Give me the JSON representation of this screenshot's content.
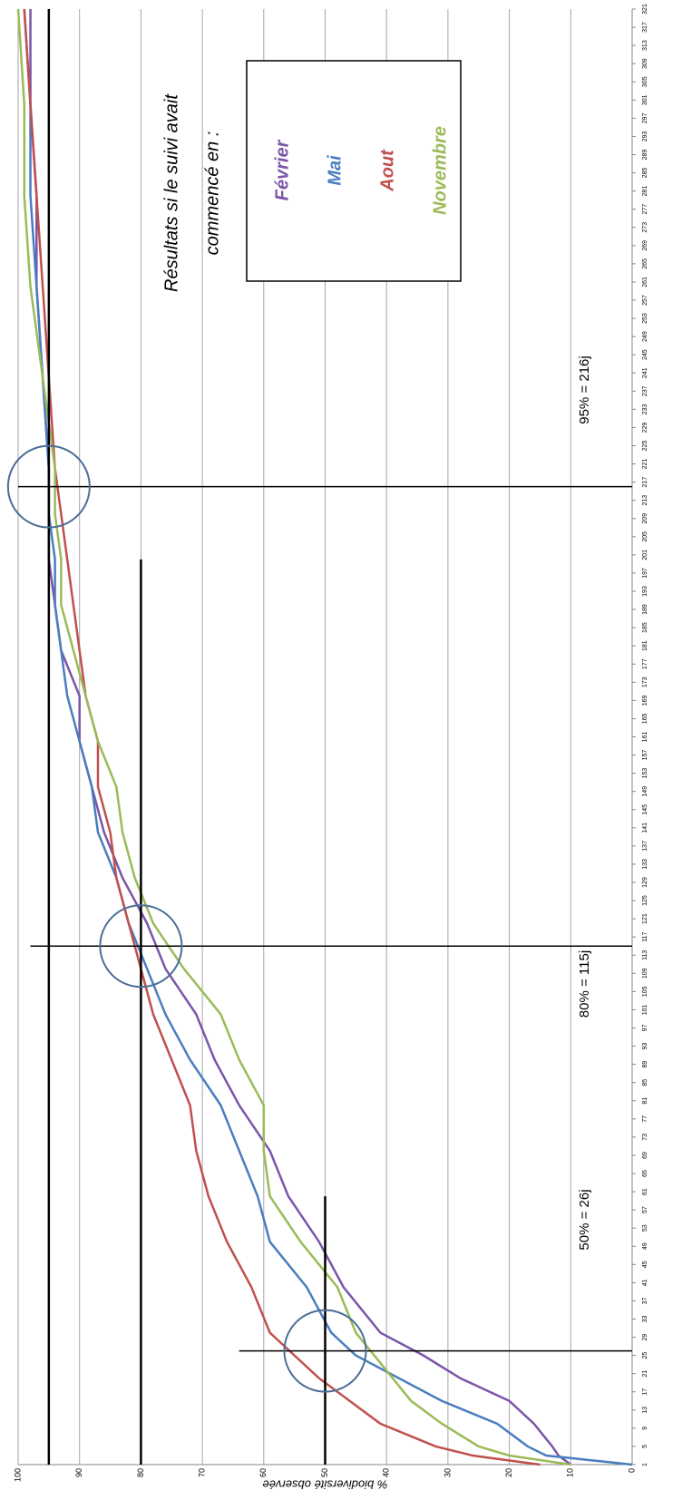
{
  "chart_data": {
    "type": "line",
    "y_label": "% biodiversité observée",
    "legend_title": [
      "Résultats si le suivi avait",
      "commencé en :"
    ],
    "xlim": [
      1,
      321
    ],
    "xticks": [
      1,
      5,
      9,
      13,
      17,
      21,
      25,
      29,
      33,
      37,
      41,
      45,
      49,
      53,
      57,
      61,
      65,
      69,
      73,
      77,
      81,
      85,
      89,
      93,
      97,
      101,
      105,
      109,
      113,
      117,
      121,
      125,
      129,
      133,
      137,
      141,
      145,
      149,
      153,
      157,
      161,
      165,
      169,
      173,
      177,
      181,
      185,
      189,
      193,
      197,
      201,
      205,
      209,
      213,
      217,
      221,
      225,
      229,
      233,
      237,
      241,
      245,
      249,
      253,
      257,
      261,
      265,
      269,
      273,
      277,
      281,
      285,
      289,
      293,
      297,
      301,
      305,
      309,
      313,
      317,
      321
    ],
    "ylim": [
      0,
      100
    ],
    "yticks": [
      0,
      10,
      20,
      30,
      40,
      50,
      60,
      70,
      80,
      90,
      100
    ],
    "grid": true,
    "x": [
      1,
      3,
      5,
      10,
      15,
      20,
      25,
      30,
      40,
      50,
      60,
      70,
      80,
      90,
      100,
      110,
      120,
      130,
      140,
      150,
      160,
      170,
      180,
      190,
      200,
      210,
      220,
      240,
      260,
      280,
      300,
      321
    ],
    "series": [
      {
        "name": "Février",
        "color": "#7a55a8",
        "values": [
          10,
          12,
          13,
          16,
          20,
          28,
          34,
          41,
          47,
          51,
          56,
          59,
          64,
          68,
          71,
          76,
          79,
          83,
          86,
          88,
          90,
          90,
          93,
          94,
          95,
          95,
          95,
          96,
          97,
          97,
          98,
          98
        ]
      },
      {
        "name": "Mai",
        "color": "#4a7ebf",
        "values": [
          0,
          14,
          17,
          22,
          31,
          38,
          45,
          49,
          53,
          59,
          61,
          64,
          67,
          72,
          76,
          79,
          82,
          84,
          87,
          88,
          90,
          92,
          93,
          94,
          94,
          95,
          95,
          96,
          97,
          98,
          98,
          99
        ]
      },
      {
        "name": "Aout",
        "color": "#c0504d",
        "values": [
          15,
          26,
          32,
          41,
          46,
          51,
          55,
          59,
          62,
          66,
          69,
          71,
          72,
          75,
          78,
          80,
          82,
          84,
          85,
          87,
          87,
          89,
          90,
          91,
          92,
          93,
          94,
          95,
          96,
          97,
          98,
          99
        ]
      },
      {
        "name": "Novembre",
        "color": "#9bbb59",
        "values": [
          10,
          20,
          25,
          31,
          36,
          39,
          42,
          45,
          48,
          54,
          59,
          60,
          60,
          64,
          67,
          73,
          78,
          81,
          83,
          84,
          87,
          89,
          91,
          93,
          93,
          94,
          94,
          96,
          98,
          99,
          99,
          100
        ]
      }
    ],
    "reference_lines": [
      {
        "x": 26,
        "y": 50,
        "label": "50% = 26j"
      },
      {
        "x": 115,
        "y": 80,
        "label": "80% = 115j"
      },
      {
        "x": 216,
        "y": 95,
        "label": "95% = 216j"
      }
    ]
  }
}
